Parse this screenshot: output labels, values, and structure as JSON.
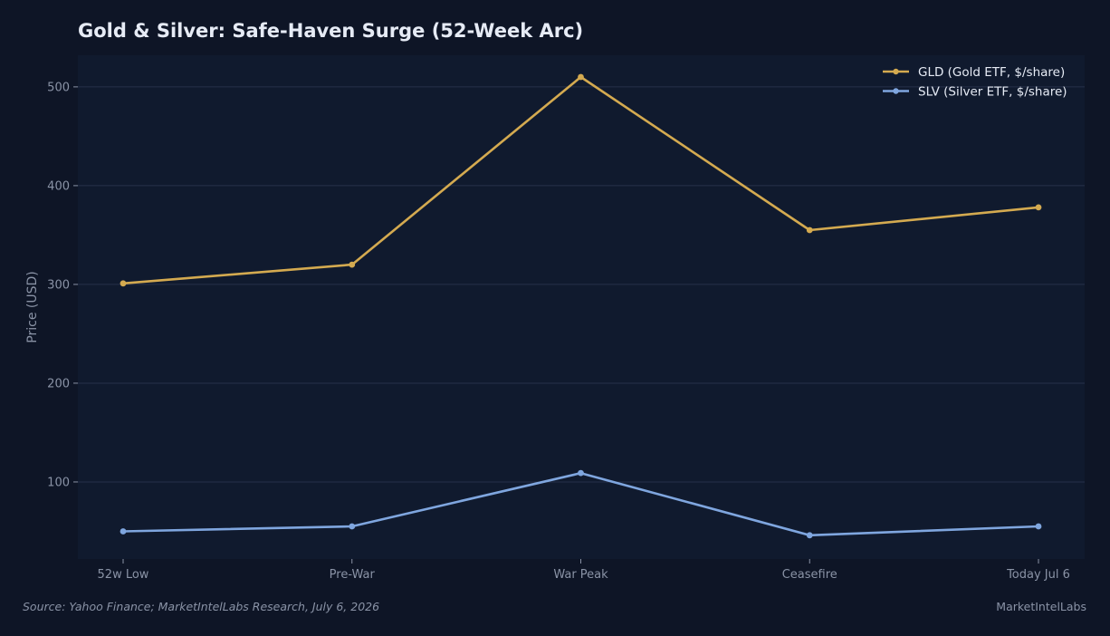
{
  "chart_data": {
    "type": "line",
    "title": "Gold & Silver: Safe-Haven Surge (52-Week Arc)",
    "xlabel": "",
    "ylabel": "Price (USD)",
    "categories": [
      "52w Low",
      "Pre-War",
      "War Peak",
      "Ceasefire",
      "Today Jul 6"
    ],
    "series": [
      {
        "name": "GLD (Gold ETF, $/share)",
        "color": "#d4aa50",
        "values": [
          301,
          320,
          510,
          355,
          378
        ]
      },
      {
        "name": "SLV (Silver ETF, $/share)",
        "color": "#7fa6df",
        "values": [
          50,
          55,
          109,
          46,
          55
        ]
      }
    ],
    "ylim": [
      22,
      532
    ],
    "yticks": [
      100,
      200,
      300,
      400,
      500
    ],
    "grid": true,
    "legend": "top-right"
  },
  "footer": {
    "source": "Source: Yahoo Finance; MarketIntelLabs Research, July 6, 2026",
    "brand": "MarketIntelLabs"
  },
  "colors": {
    "background": "#0e1526",
    "plot_background": "#101a2e"
  }
}
